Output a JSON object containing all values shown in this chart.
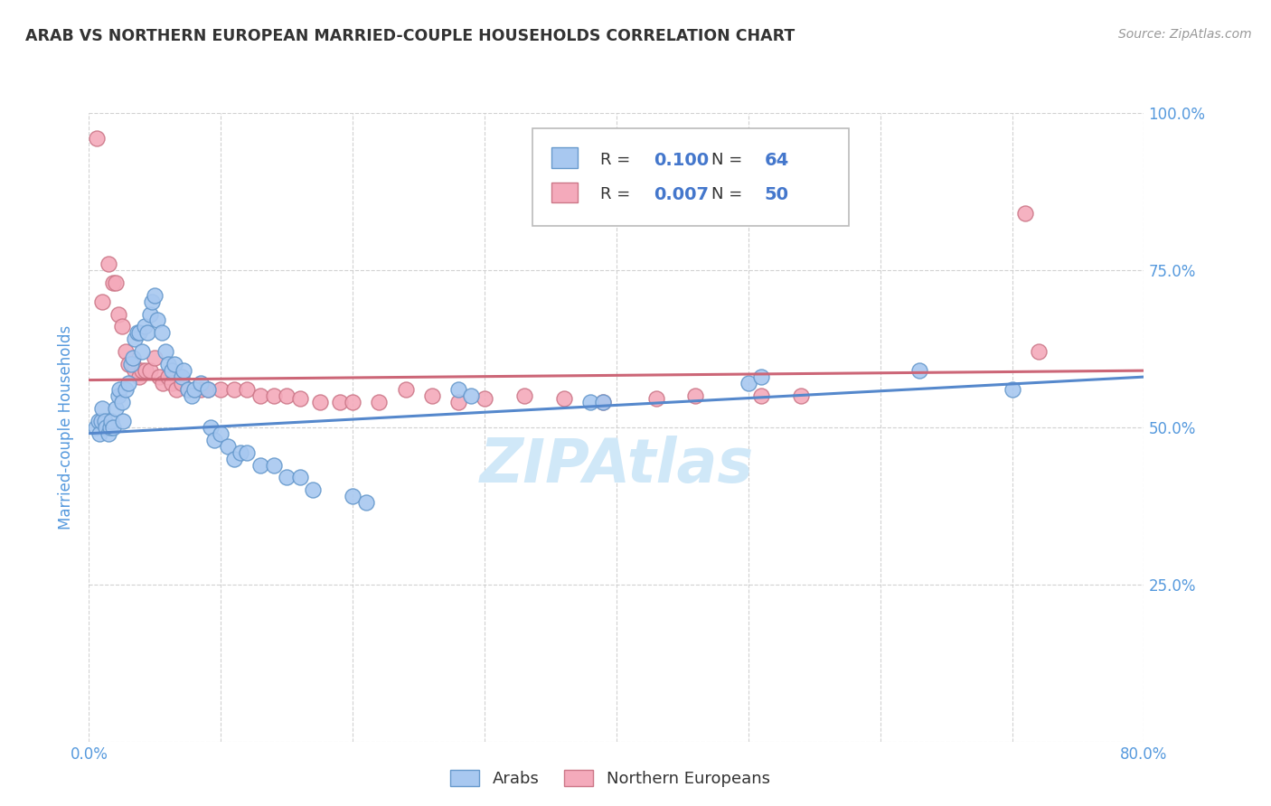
{
  "title": "ARAB VS NORTHERN EUROPEAN MARRIED-COUPLE HOUSEHOLDS CORRELATION CHART",
  "source": "Source: ZipAtlas.com",
  "ylabel": "Married-couple Households",
  "xmin": 0.0,
  "xmax": 0.8,
  "ymin": 0.0,
  "ymax": 1.0,
  "arab_R": 0.1,
  "arab_N": 64,
  "ne_R": 0.007,
  "ne_N": 50,
  "arab_color": "#A8C8F0",
  "ne_color": "#F4AABB",
  "arab_edge_color": "#6699CC",
  "ne_edge_color": "#CC7788",
  "arab_line_color": "#5588CC",
  "ne_line_color": "#CC6677",
  "background_color": "#FFFFFF",
  "grid_color": "#CCCCCC",
  "title_color": "#333333",
  "axis_label_color": "#5599DD",
  "watermark_color": "#D0E8F8",
  "legend_val_color": "#4477CC",
  "arab_x": [
    0.005,
    0.007,
    0.008,
    0.009,
    0.01,
    0.012,
    0.013,
    0.015,
    0.016,
    0.017,
    0.018,
    0.02,
    0.022,
    0.023,
    0.025,
    0.026,
    0.028,
    0.03,
    0.032,
    0.033,
    0.035,
    0.037,
    0.038,
    0.04,
    0.042,
    0.044,
    0.046,
    0.048,
    0.05,
    0.052,
    0.055,
    0.058,
    0.06,
    0.063,
    0.065,
    0.07,
    0.072,
    0.075,
    0.078,
    0.08,
    0.085,
    0.09,
    0.092,
    0.095,
    0.1,
    0.105,
    0.11,
    0.115,
    0.12,
    0.13,
    0.14,
    0.15,
    0.16,
    0.17,
    0.2,
    0.21,
    0.28,
    0.29,
    0.38,
    0.39,
    0.5,
    0.51,
    0.63,
    0.7
  ],
  "arab_y": [
    0.5,
    0.51,
    0.49,
    0.51,
    0.53,
    0.51,
    0.5,
    0.49,
    0.5,
    0.51,
    0.5,
    0.53,
    0.55,
    0.56,
    0.54,
    0.51,
    0.56,
    0.57,
    0.6,
    0.61,
    0.64,
    0.65,
    0.65,
    0.62,
    0.66,
    0.65,
    0.68,
    0.7,
    0.71,
    0.67,
    0.65,
    0.62,
    0.6,
    0.59,
    0.6,
    0.58,
    0.59,
    0.56,
    0.55,
    0.56,
    0.57,
    0.56,
    0.5,
    0.48,
    0.49,
    0.47,
    0.45,
    0.46,
    0.46,
    0.44,
    0.44,
    0.42,
    0.42,
    0.4,
    0.39,
    0.38,
    0.56,
    0.55,
    0.54,
    0.54,
    0.57,
    0.58,
    0.59,
    0.56
  ],
  "ne_x": [
    0.006,
    0.01,
    0.015,
    0.018,
    0.02,
    0.022,
    0.025,
    0.028,
    0.03,
    0.033,
    0.035,
    0.038,
    0.04,
    0.043,
    0.046,
    0.05,
    0.053,
    0.056,
    0.06,
    0.063,
    0.066,
    0.07,
    0.075,
    0.08,
    0.085,
    0.09,
    0.1,
    0.11,
    0.12,
    0.13,
    0.14,
    0.15,
    0.16,
    0.175,
    0.19,
    0.2,
    0.22,
    0.24,
    0.26,
    0.28,
    0.3,
    0.33,
    0.36,
    0.39,
    0.43,
    0.46,
    0.51,
    0.54,
    0.71,
    0.72
  ],
  "ne_y": [
    0.96,
    0.7,
    0.76,
    0.73,
    0.73,
    0.68,
    0.66,
    0.62,
    0.6,
    0.6,
    0.59,
    0.58,
    0.59,
    0.59,
    0.59,
    0.61,
    0.58,
    0.57,
    0.58,
    0.57,
    0.56,
    0.57,
    0.56,
    0.56,
    0.56,
    0.56,
    0.56,
    0.56,
    0.56,
    0.55,
    0.55,
    0.55,
    0.545,
    0.54,
    0.54,
    0.54,
    0.54,
    0.56,
    0.55,
    0.54,
    0.545,
    0.55,
    0.545,
    0.54,
    0.545,
    0.55,
    0.55,
    0.55,
    0.84,
    0.62
  ],
  "arab_line_start_y": 0.49,
  "arab_line_end_y": 0.58,
  "ne_line_start_y": 0.575,
  "ne_line_end_y": 0.59
}
